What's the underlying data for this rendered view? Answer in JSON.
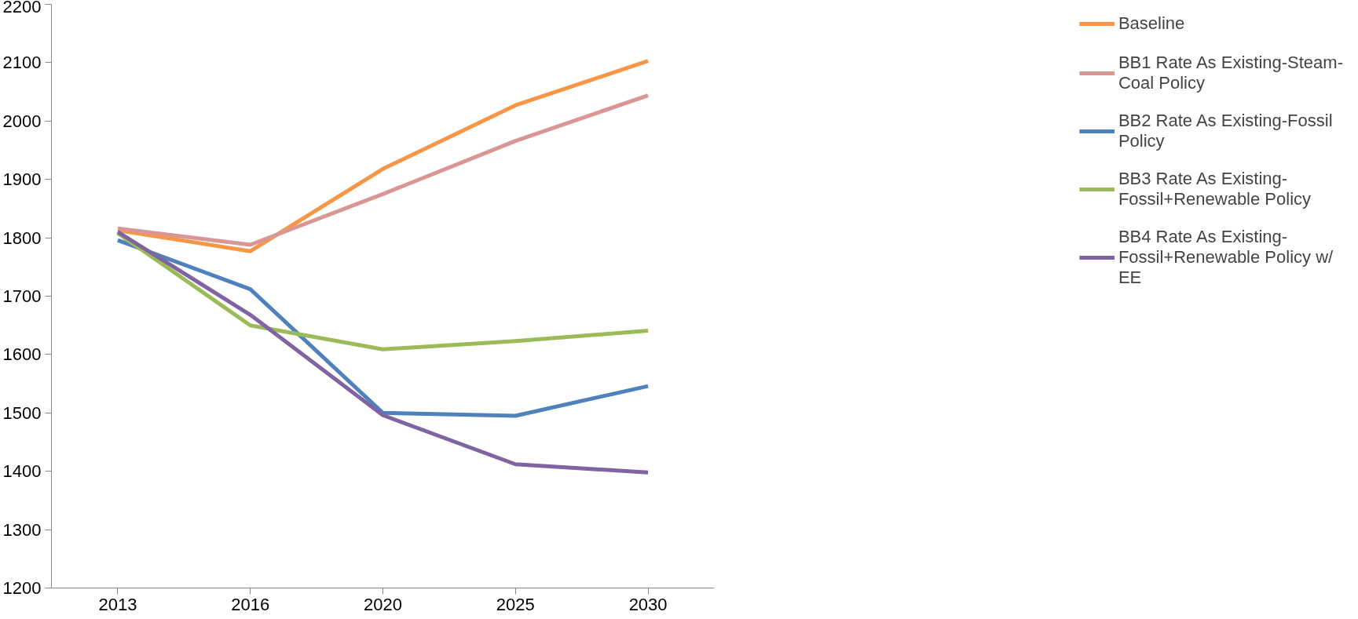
{
  "chart_data": {
    "type": "line",
    "categories": [
      "2013",
      "2016",
      "2020",
      "2025",
      "2030"
    ],
    "ylim": [
      1200,
      2200
    ],
    "yticks": [
      1200,
      1300,
      1400,
      1500,
      1600,
      1700,
      1800,
      1900,
      2000,
      2100,
      2200
    ],
    "grid": false,
    "legend": "right",
    "marker": "none",
    "line_style": "solid",
    "series": [
      {
        "name": "Baseline",
        "color": "#f79646",
        "values": [
          1813,
          1777,
          1918,
          2027,
          2103
        ]
      },
      {
        "name": "BB1 Rate As Existing-Steam-Coal Policy",
        "color": "#d99694",
        "values": [
          1816,
          1788,
          1875,
          1966,
          2044
        ]
      },
      {
        "name": "BB2 Rate As Existing-Fossil Policy",
        "color": "#4f81bd",
        "values": [
          1796,
          1712,
          1500,
          1495,
          1546
        ]
      },
      {
        "name": "BB3 Rate As Existing-Fossil+Renewable Policy",
        "color": "#9bbb59",
        "values": [
          1808,
          1650,
          1609,
          1623,
          1641
        ]
      },
      {
        "name": "BB4 Rate As Existing-Fossil+Renewable Policy w/ EE",
        "color": "#8064a2",
        "values": [
          1810,
          1668,
          1496,
          1412,
          1398
        ]
      }
    ]
  }
}
